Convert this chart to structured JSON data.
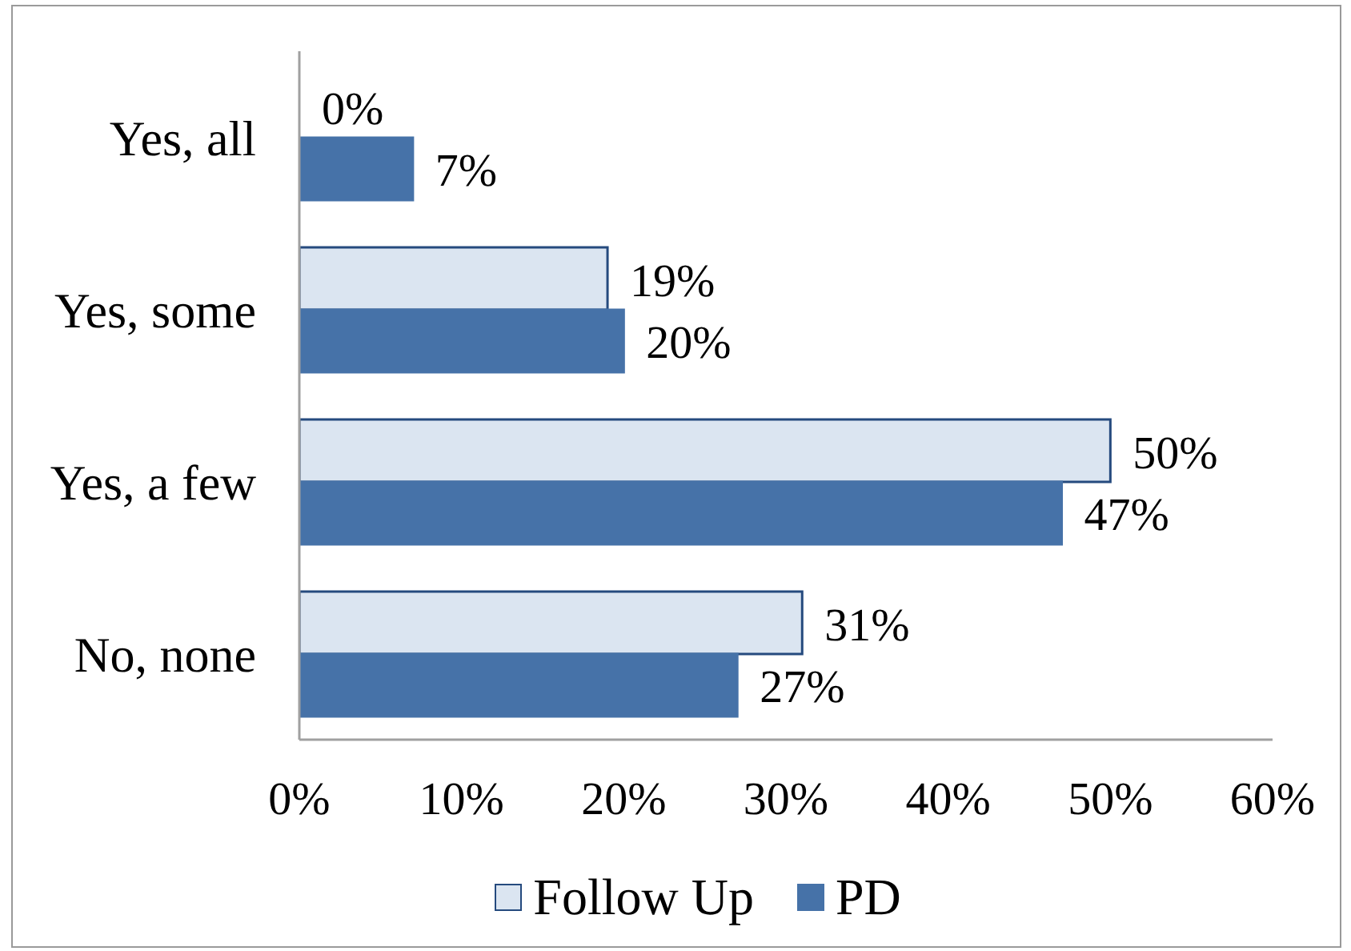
{
  "chart_data": {
    "type": "bar",
    "orientation": "horizontal",
    "categories": [
      "Yes, all",
      "Yes, some",
      "Yes, a few",
      "No, none"
    ],
    "series": [
      {
        "name": "Follow Up",
        "color": "#dbe5f1",
        "values": [
          0,
          19,
          50,
          31
        ],
        "value_labels": [
          "0%",
          "19%",
          "50%",
          "31%"
        ]
      },
      {
        "name": "PD",
        "color": "#4672a8",
        "values": [
          7,
          20,
          47,
          27
        ],
        "value_labels": [
          "7%",
          "20%",
          "47%",
          "27%"
        ]
      }
    ],
    "xlim": [
      0,
      60
    ],
    "xticks": [
      {
        "value": 0,
        "label": "0%"
      },
      {
        "value": 10,
        "label": "10%"
      },
      {
        "value": 20,
        "label": "20%"
      },
      {
        "value": 30,
        "label": "30%"
      },
      {
        "value": 40,
        "label": "40%"
      },
      {
        "value": 50,
        "label": "50%"
      },
      {
        "value": 60,
        "label": "60%"
      }
    ],
    "grid": false,
    "legend": "bottom"
  }
}
